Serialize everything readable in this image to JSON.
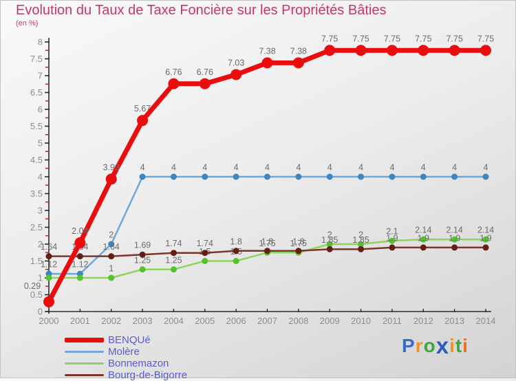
{
  "header": {
    "title": "Evolution du Taux de Taxe Foncière sur les Propriétés Bâties",
    "subtitle": "(en %)"
  },
  "colors": {
    "title": "#c23a5f",
    "axis_line": "#2a2a2a",
    "axis_labels": "#8c8c8c",
    "data_labels": "#6b6b6b",
    "minor_tick": "#d41c1c",
    "legend_text": "#5a5ad0",
    "background_top": "#f9f9f9",
    "background_bottom": "#d3d3d3"
  },
  "chart_data": {
    "type": "line",
    "x": [
      "2000",
      "2001",
      "2002",
      "2003",
      "2004",
      "2005",
      "2006",
      "2007",
      "2008",
      "2009",
      "2010",
      "2011",
      "2012",
      "2013",
      "2014"
    ],
    "ylim": [
      0,
      8
    ],
    "ytick_step": 0.5,
    "yminor_step": 0.25,
    "y_tick_labels": [
      "0",
      "0.5",
      "1",
      "1.5",
      "2",
      "2.5",
      "3",
      "3.5",
      "4",
      "4.5",
      "5",
      "5.5",
      "6",
      "6.5",
      "7",
      "7.5",
      "8"
    ],
    "grid": false,
    "legend_position": "bottom-left",
    "series": [
      {
        "name": "BENQUé",
        "color": "#e90d0d",
        "marker_color": "#e90d0d",
        "line_width": 7,
        "marker_radius": 8,
        "legend_thickness": 7,
        "values": [
          0.29,
          2.04,
          3.93,
          5.67,
          6.76,
          6.76,
          7.03,
          7.38,
          7.38,
          7.75,
          7.75,
          7.75,
          7.75,
          7.75,
          7.75
        ],
        "labels": [
          "0.29",
          "2.04",
          "3.93",
          "5.67",
          "6.76",
          "6.76",
          "7.03",
          "7.38",
          "7.38",
          "7.75",
          "7.75",
          "7.75",
          "7.75",
          "7.75",
          "7.75"
        ]
      },
      {
        "name": "Molère",
        "color": "#6ea7d8",
        "marker_color": "#3d86c0",
        "line_width": 2.5,
        "marker_radius": 4.5,
        "legend_thickness": 3,
        "values": [
          1.12,
          1.12,
          2,
          4,
          4,
          4,
          4,
          4,
          4,
          4,
          4,
          4,
          4,
          4,
          4
        ],
        "labels": [
          "1.12",
          "1.12",
          "2",
          "4",
          "4",
          "4",
          "4",
          "4",
          "4",
          "4",
          "4",
          "4",
          "4",
          "4",
          "4"
        ]
      },
      {
        "name": "Bonnemazon",
        "color": "#8fd35f",
        "marker_color": "#54c22a",
        "line_width": 2.5,
        "marker_radius": 4.5,
        "legend_thickness": 3,
        "values": [
          1,
          1,
          1,
          1.25,
          1.25,
          1.5,
          1.5,
          1.75,
          1.75,
          2,
          2,
          2.1,
          2.14,
          2.14,
          2.14
        ],
        "labels": [
          "",
          "",
          "1",
          "1.25",
          "1.25",
          "1.5",
          "1.5",
          "1.75",
          "1.75",
          "2",
          "2",
          "2.1",
          "2.14",
          "2.14",
          "2.14"
        ]
      },
      {
        "name": "Bourg-de-Bigorre",
        "color": "#7c352b",
        "marker_color": "#641f15",
        "line_width": 2.5,
        "marker_radius": 4.5,
        "legend_thickness": 3,
        "values": [
          1.64,
          1.64,
          1.64,
          1.69,
          1.74,
          1.74,
          1.8,
          1.8,
          1.8,
          1.85,
          1.85,
          1.9,
          1.9,
          1.9,
          1.9
        ],
        "labels": [
          "1.64",
          "1.64",
          "1.64",
          "1.69",
          "1.74",
          "1.74",
          "1.8",
          "1.8",
          "1.8",
          "1.85",
          "1.85",
          "1.9",
          "1.9",
          "1.9",
          "1.9"
        ]
      }
    ]
  },
  "logo": {
    "text": "Proxiti",
    "letters": [
      {
        "ch": "P",
        "color": "#3a6cc5"
      },
      {
        "ch": "r",
        "color": "#f29222"
      },
      {
        "ch": "o",
        "color": "#3fa73f"
      },
      {
        "ch": "x",
        "color": "#2c5cbe"
      },
      {
        "ch": "i",
        "color": "#f29222"
      },
      {
        "ch": "t",
        "color": "#3fa73f"
      },
      {
        "ch": "i",
        "color": "#ee6f20"
      }
    ]
  }
}
